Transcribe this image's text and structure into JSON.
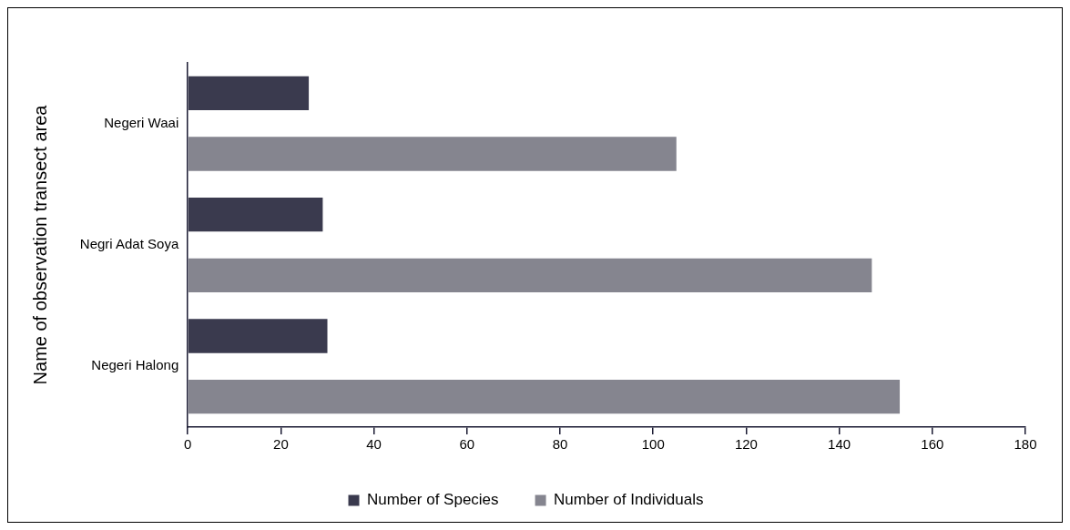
{
  "chart_data": {
    "type": "bar",
    "orientation": "horizontal",
    "ylabel": "Name of observation transect area",
    "categories": [
      "Negeri Waai",
      "Negri Adat Soya",
      "Negeri Halong"
    ],
    "series": [
      {
        "name": "Number of Species",
        "color": "#3a3a4e",
        "values": [
          26,
          29,
          30
        ]
      },
      {
        "name": "Number of Individuals",
        "color": "#85858f",
        "values": [
          105,
          147,
          153
        ]
      }
    ],
    "xlim": [
      0,
      180
    ],
    "xticks": [
      0,
      20,
      40,
      60,
      80,
      100,
      120,
      140,
      160,
      180
    ],
    "grid": false,
    "legend": "bottom"
  }
}
